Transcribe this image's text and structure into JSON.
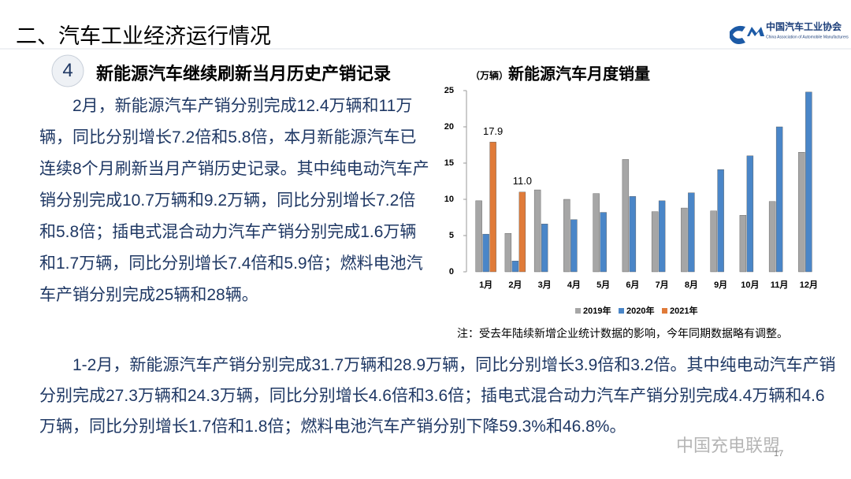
{
  "header": {
    "title": "二、汽车工业经济运行情况",
    "logo_cn": "中国汽车工业协会",
    "logo_en": "China Association of Automobile Manufacturers"
  },
  "section": {
    "number": "4",
    "heading": "新能源汽车继续刷新当月历史产销记录"
  },
  "paragraphs": [
    "2月，新能源汽车产销分别完成12.4万辆和11万辆，同比分别增长7.2倍和5.8倍，本月新能源汽车已连续8个月刷新当月产销历史记录。其中纯电动汽车产销分别完成10.7万辆和9.2万辆，同比分别增长7.2倍和5.8倍；插电式混合动力汽车产销分别完成1.6万辆和1.7万辆，同比分别增长7.4倍和5.9倍；燃料电池汽车产销分别完成25辆和28辆。",
    "1-2月，新能源汽车产销分别完成31.7万辆和28.9万辆，同比分别增长3.9倍和3.2倍。其中纯电动汽车产销分别完成27.3万辆和24.3万辆，同比分别增长4.6倍和3.6倍；插电式混合动力汽车产销分别完成4.4万辆和4.6万辆，同比分别增长1.7倍和1.8倍；燃料电池汽车产销分别下降59.3%和46.8%。"
  ],
  "chart_data": {
    "type": "bar",
    "title": "新能源汽车月度销量",
    "y_label": "（万辆）",
    "categories": [
      "1月",
      "2月",
      "3月",
      "4月",
      "5月",
      "6月",
      "7月",
      "8月",
      "9月",
      "10月",
      "11月",
      "12月"
    ],
    "series": [
      {
        "name": "2019年",
        "color": "#a6a6a6",
        "values": [
          9.8,
          5.3,
          11.3,
          10.0,
          10.8,
          15.5,
          8.3,
          8.8,
          8.4,
          7.8,
          9.7,
          16.5
        ]
      },
      {
        "name": "2020年",
        "color": "#4a86c8",
        "values": [
          5.2,
          1.5,
          6.6,
          7.2,
          8.2,
          10.4,
          9.8,
          10.9,
          14.1,
          16.0,
          20.0,
          24.8
        ]
      },
      {
        "name": "2021年",
        "color": "#e07b39",
        "values": [
          17.9,
          11.0,
          null,
          null,
          null,
          null,
          null,
          null,
          null,
          null,
          null,
          null
        ],
        "value_labels": [
          "17.9",
          "11.0",
          null,
          null,
          null,
          null,
          null,
          null,
          null,
          null,
          null,
          null
        ]
      }
    ],
    "ylim": [
      0,
      25
    ],
    "yticks": [
      0,
      5,
      10,
      15,
      20,
      25
    ],
    "legend": "bottom"
  },
  "note": "注：受去年陆续新增企业统计数据的影响，今年同期数据略有调整。",
  "footer": {
    "watermark": "中国充电联盟",
    "page": "17"
  }
}
